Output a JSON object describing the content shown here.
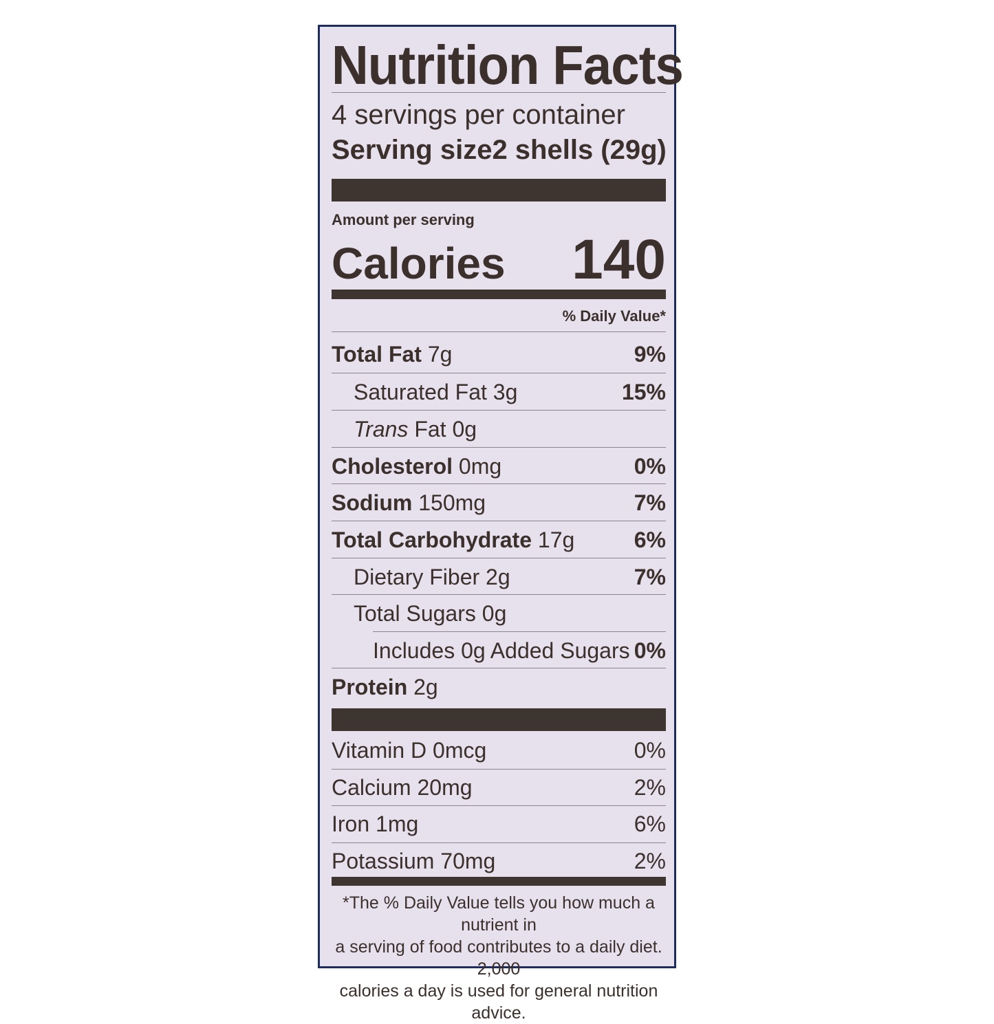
{
  "title": "Nutrition Facts",
  "servings_per_container": "4 servings per container",
  "serving_size_label": "Serving size",
  "serving_size_value": "2 shells (29g)",
  "amount_per_serving": "Amount per serving",
  "calories_label": "Calories",
  "calories_value": "140",
  "daily_value_header": "% Daily Value*",
  "nutrients": [
    {
      "name": "Total Fat",
      "amount": "7g",
      "dv": "9%"
    },
    {
      "name": "Saturated Fat",
      "amount": "3g",
      "dv": "15%"
    },
    {
      "name": "Trans",
      "name2": "Fat",
      "amount": "0g",
      "dv": ""
    },
    {
      "name": "Cholesterol",
      "amount": "0mg",
      "dv": "0%"
    },
    {
      "name": "Sodium",
      "amount": "150mg",
      "dv": "7%"
    },
    {
      "name": "Total Carbohydrate",
      "amount": "17g",
      "dv": "6%"
    },
    {
      "name": "Dietary Fiber",
      "amount": "2g",
      "dv": "7%"
    },
    {
      "name": "Total Sugars",
      "amount": "0g",
      "dv": ""
    },
    {
      "name": "Includes 0g Added Sugars",
      "amount": "",
      "dv": "0%"
    },
    {
      "name": "Protein",
      "amount": "2g",
      "dv": ""
    }
  ],
  "vitamins": [
    {
      "name": "Vitamin D 0mcg",
      "dv": "0%"
    },
    {
      "name": "Calcium 20mg",
      "dv": "2%"
    },
    {
      "name": "Iron 1mg",
      "dv": "6%"
    },
    {
      "name": "Potassium 70mg",
      "dv": "2%"
    }
  ],
  "footnote": [
    "*The % Daily Value tells you how much a nutrient in",
    "a serving of food contributes to a daily diet. 2,000",
    "calories a day is used for general nutrition advice."
  ],
  "colors": {
    "background": "#e7e1ee",
    "ink": "#3b302c",
    "border": "#1f2d5c"
  }
}
